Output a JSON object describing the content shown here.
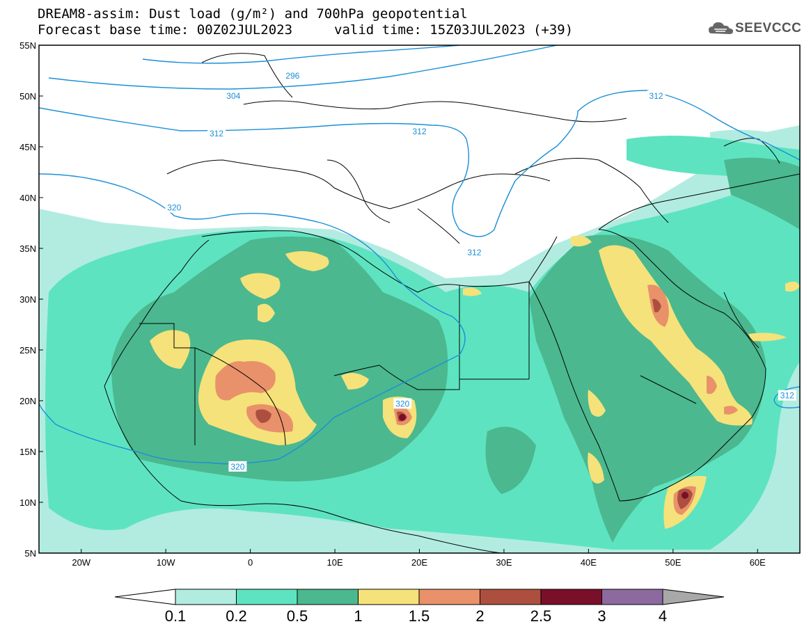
{
  "title_line1": "DREAM8-assim: Dust load (g/m²) and 700hPa geopotential",
  "title_line2": "Forecast base time: 00Z02JUL2023",
  "valid_time": "valid time: 15Z03JUL2023 (+39)",
  "logo_text": "SEEVCCC",
  "lat_labels": [
    "55N",
    "50N",
    "45N",
    "40N",
    "35N",
    "30N",
    "25N",
    "20N",
    "15N",
    "10N",
    "5N"
  ],
  "lat_values": [
    55,
    50,
    45,
    40,
    35,
    30,
    25,
    20,
    15,
    10,
    5
  ],
  "lon_labels": [
    "20W",
    "10W",
    "0",
    "10E",
    "20E",
    "30E",
    "40E",
    "50E",
    "60E"
  ],
  "lon_values": [
    -20,
    -10,
    0,
    10,
    20,
    30,
    40,
    50,
    60
  ],
  "contour_labels": [
    {
      "text": "296",
      "lon": 5,
      "lat": 52
    },
    {
      "text": "304",
      "lon": -2,
      "lat": 50
    },
    {
      "text": "312",
      "lon": -4,
      "lat": 46.3
    },
    {
      "text": "312",
      "lon": 20,
      "lat": 46.5
    },
    {
      "text": "312",
      "lon": 48,
      "lat": 50
    },
    {
      "text": "312",
      "lon": 26.5,
      "lat": 34.6
    },
    {
      "text": "312",
      "lon": 63.5,
      "lat": 20.5
    },
    {
      "text": "320",
      "lon": -9,
      "lat": 39
    },
    {
      "text": "320",
      "lon": 18,
      "lat": 19.7
    },
    {
      "text": "320",
      "lon": -1.5,
      "lat": 13.5
    }
  ],
  "colorbar": {
    "levels": [
      "0.1",
      "0.2",
      "0.5",
      "1",
      "1.5",
      "2",
      "2.5",
      "3",
      "4"
    ],
    "colors": [
      "#b2ece1",
      "#5ee3c0",
      "#4bb88f",
      "#f5e27a",
      "#e9916a",
      "#ad4f3f",
      "#7a0f2a",
      "#8c6aa0"
    ],
    "over_color": "#a8a8a8",
    "under_color": "#ffffff"
  },
  "chart_data": {
    "type": "heatmap",
    "variable": "Dust load (g/m²)",
    "overlay": "700hPa geopotential",
    "lon_range": [
      -25,
      65
    ],
    "lat_range": [
      5,
      55
    ]
  }
}
